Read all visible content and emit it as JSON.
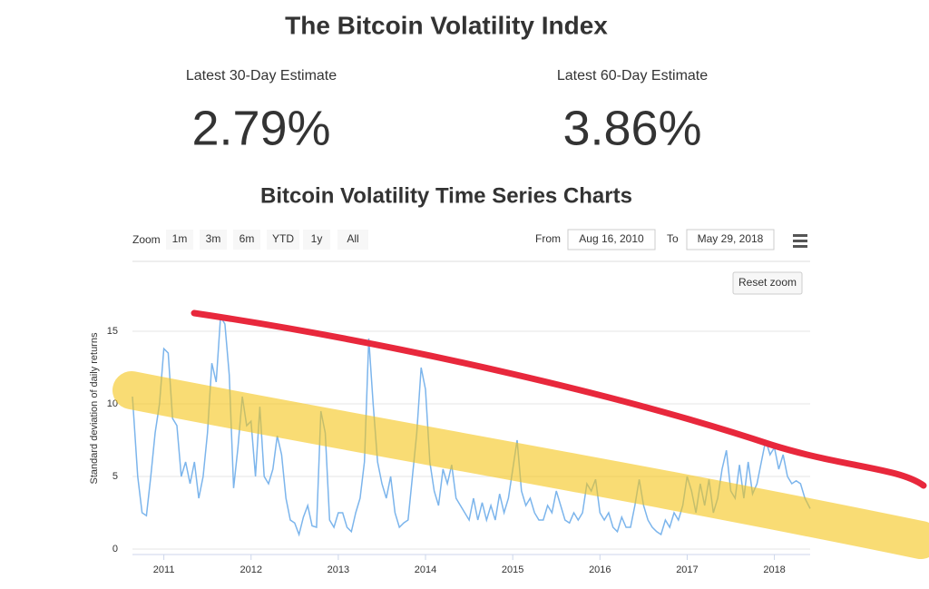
{
  "header": {
    "title": "The Bitcoin Volatility Index",
    "estimates": [
      {
        "label": "Latest 30-Day Estimate",
        "value": "2.79%"
      },
      {
        "label": "Latest 60-Day Estimate",
        "value": "3.86%"
      }
    ],
    "section_title": "Bitcoin Volatility Time Series Charts"
  },
  "toolbar": {
    "zoom_label": "Zoom",
    "zoom_buttons": [
      "1m",
      "3m",
      "6m",
      "YTD",
      "1y",
      "All"
    ],
    "from_label": "From",
    "from_date": "Aug 16, 2010",
    "to_label": "To",
    "to_date": "May 29, 2018",
    "reset_zoom": "Reset zoom"
  },
  "chart_data": {
    "type": "line",
    "ylabel": "Standard deviation of daily returns",
    "x": [
      2010.64,
      2010.7,
      2010.75,
      2010.8,
      2010.85,
      2010.9,
      2010.95,
      2011,
      2011.05,
      2011.1,
      2011.15,
      2011.2,
      2011.25,
      2011.3,
      2011.35,
      2011.4,
      2011.45,
      2011.5,
      2011.55,
      2011.6,
      2011.65,
      2011.7,
      2011.75,
      2011.8,
      2011.85,
      2011.9,
      2011.95,
      2012,
      2012.05,
      2012.1,
      2012.15,
      2012.2,
      2012.25,
      2012.3,
      2012.35,
      2012.4,
      2012.45,
      2012.5,
      2012.55,
      2012.6,
      2012.65,
      2012.7,
      2012.75,
      2012.8,
      2012.85,
      2012.9,
      2012.95,
      2013,
      2013.05,
      2013.1,
      2013.15,
      2013.2,
      2013.25,
      2013.3,
      2013.35,
      2013.4,
      2013.45,
      2013.5,
      2013.55,
      2013.6,
      2013.65,
      2013.7,
      2013.75,
      2013.8,
      2013.85,
      2013.9,
      2013.95,
      2014,
      2014.05,
      2014.1,
      2014.15,
      2014.2,
      2014.25,
      2014.3,
      2014.35,
      2014.4,
      2014.45,
      2014.5,
      2014.55,
      2014.6,
      2014.65,
      2014.7,
      2014.75,
      2014.8,
      2014.85,
      2014.9,
      2014.95,
      2015,
      2015.05,
      2015.1,
      2015.15,
      2015.2,
      2015.25,
      2015.3,
      2015.35,
      2015.4,
      2015.45,
      2015.5,
      2015.55,
      2015.6,
      2015.65,
      2015.7,
      2015.75,
      2015.8,
      2015.85,
      2015.9,
      2015.95,
      2016,
      2016.05,
      2016.1,
      2016.15,
      2016.2,
      2016.25,
      2016.3,
      2016.35,
      2016.4,
      2016.45,
      2016.5,
      2016.55,
      2016.6,
      2016.65,
      2016.7,
      2016.75,
      2016.8,
      2016.85,
      2016.9,
      2016.95,
      2017,
      2017.05,
      2017.1,
      2017.15,
      2017.2,
      2017.25,
      2017.3,
      2017.35,
      2017.4,
      2017.45,
      2017.5,
      2017.55,
      2017.6,
      2017.65,
      2017.7,
      2017.75,
      2017.8,
      2017.85,
      2017.9,
      2017.95,
      2018,
      2018.05,
      2018.1,
      2018.15,
      2018.2,
      2018.25,
      2018.3,
      2018.35,
      2018.41
    ],
    "series": [
      {
        "color": "#7cb5ec",
        "values": [
          10.5,
          5,
          2.5,
          2.3,
          5,
          8,
          10,
          13.8,
          13.5,
          9,
          8.5,
          5,
          6,
          4.5,
          6,
          3.5,
          5,
          8,
          12.8,
          11.5,
          16,
          15.5,
          12,
          4.2,
          7,
          10.5,
          8.5,
          8.8,
          5,
          9.8,
          5,
          4.5,
          5.5,
          7.8,
          6.5,
          3.5,
          2,
          1.8,
          1,
          2.2,
          3,
          1.6,
          1.5,
          9.5,
          8,
          2,
          1.5,
          2.5,
          2.5,
          1.5,
          1.2,
          2.5,
          3.5,
          6,
          14.5,
          10,
          6,
          4.5,
          3.5,
          5,
          2.5,
          1.5,
          1.8,
          2,
          5,
          8,
          12.5,
          11,
          6,
          4,
          3,
          5.5,
          4.5,
          5.8,
          3.5,
          3,
          2.5,
          2,
          3.5,
          2,
          3.2,
          2,
          3,
          2,
          3.8,
          2.5,
          3.5,
          5.5,
          7.5,
          4,
          3,
          3.5,
          2.5,
          2,
          2,
          3,
          2.5,
          4,
          3,
          2,
          1.8,
          2.5,
          2,
          2.5,
          4.5,
          4,
          4.8,
          2.5,
          2,
          2.5,
          1.5,
          1.2,
          2.2,
          1.5,
          1.5,
          3,
          4.8,
          3,
          2,
          1.5,
          1.2,
          1,
          2,
          1.5,
          2.5,
          2,
          3,
          5,
          4,
          2.5,
          4.5,
          3,
          4.8,
          2.5,
          3.5,
          5.5,
          6.8,
          4,
          3.5,
          5.8,
          3.5,
          6,
          3.8,
          4.5,
          6,
          7.5,
          6.5,
          7,
          5.5,
          6.5,
          5,
          4.5,
          4.7,
          4.5,
          3.5,
          2.79
        ]
      }
    ],
    "xlim": [
      2010.64,
      2018.41
    ],
    "xticks": [
      2011,
      2012,
      2013,
      2014,
      2015,
      2016,
      2017,
      2018
    ],
    "ylim": [
      0,
      20
    ],
    "yticks": [
      0,
      5,
      10,
      15
    ],
    "grid": true
  }
}
